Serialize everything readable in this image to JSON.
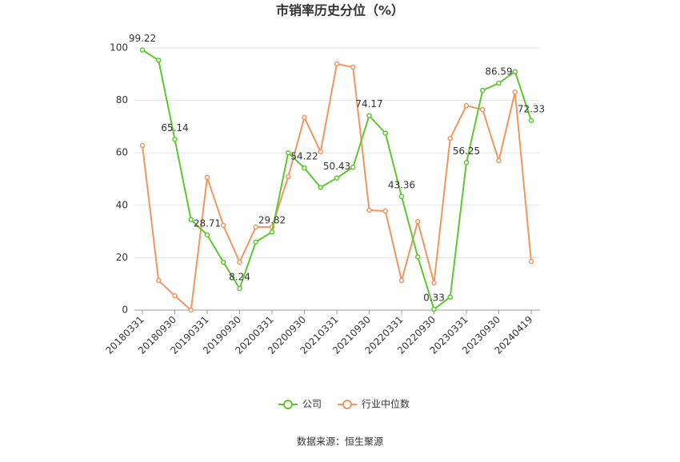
{
  "chart_data": {
    "type": "line",
    "title": "市销率历史分位（%）",
    "categories": [
      "20180331",
      null,
      "20180930",
      null,
      "20190331",
      null,
      "20190930",
      null,
      "20200331",
      null,
      "20200930",
      null,
      "20210331",
      null,
      "20210930",
      null,
      "20220331",
      null,
      "20220930",
      null,
      "20230331",
      null,
      "20230930",
      null,
      "20240419"
    ],
    "series": [
      {
        "name": "公司",
        "color": "#5cc82e",
        "values": [
          99.22,
          95.3,
          65.14,
          34.5,
          28.71,
          18.3,
          8.24,
          26,
          29.82,
          60,
          54.22,
          46.8,
          50.43,
          54.5,
          74.17,
          67.5,
          43.36,
          20.3,
          0.33,
          5,
          56.25,
          83.8,
          86.59,
          91,
          72.33
        ],
        "value_labels": [
          "99.22",
          null,
          "65.14",
          null,
          "28.71",
          null,
          "8.24",
          null,
          "29.82",
          null,
          "54.22",
          null,
          "50.43",
          null,
          "74.17",
          null,
          "43.36",
          null,
          "0.33",
          null,
          "56.25",
          null,
          "86.59",
          null,
          "72.33"
        ]
      },
      {
        "name": "行业中位数",
        "color": "#f4945e",
        "values": [
          62.8,
          11.3,
          5.5,
          0,
          50.6,
          32.3,
          18.3,
          31.7,
          31.7,
          50.9,
          73.5,
          60.4,
          93.9,
          92.7,
          38.1,
          37.8,
          11.3,
          33.8,
          10.4,
          65.5,
          78,
          76.5,
          57,
          83.2,
          18.6
        ]
      }
    ],
    "ylim": [
      0,
      100
    ],
    "yticks": [
      0,
      20,
      40,
      60,
      80,
      100
    ],
    "grid": true,
    "source": "数据来源：恒生聚源"
  }
}
